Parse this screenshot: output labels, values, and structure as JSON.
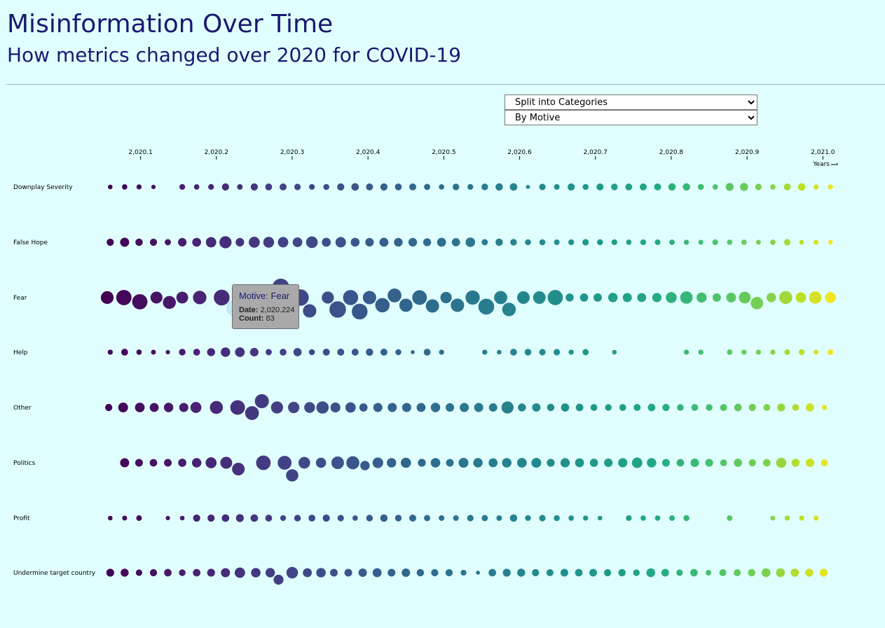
{
  "header": {
    "title": "Misinformation Over Time",
    "subtitle": "How metrics changed over 2020 for COVID-19"
  },
  "controls": {
    "split": {
      "selected": "Split into Categories"
    },
    "group": {
      "selected": "By Motive"
    }
  },
  "tooltip": {
    "heading": "Motive: Fear",
    "date_label": "Date:",
    "date_value": "2,020.224",
    "count_label": "Count:",
    "count_value": "83"
  },
  "chart_data": {
    "type": "scatter",
    "xlabel": "Years",
    "xlim": [
      2020.056,
      2021.02
    ],
    "x_ticks": [
      "2,020.1",
      "2,020.2",
      "2,020.3",
      "2,020.4",
      "2,020.5",
      "2,020.6",
      "2,020.7",
      "2,020.8",
      "2,020.9",
      "2,021.0"
    ],
    "x_tick_values": [
      2020.1,
      2020.2,
      2020.3,
      2020.4,
      2020.5,
      2020.6,
      2020.7,
      2020.8,
      2020.9,
      2021.0
    ],
    "series_colors": {
      "start": "#440154",
      "end": "#fde725"
    },
    "series": [
      {
        "name": "Downplay Severity",
        "x": [
          2020.06,
          2020.079,
          2020.098,
          2020.117,
          2020.155,
          2020.174,
          2020.193,
          2020.212,
          2020.231,
          2020.25,
          2020.269,
          2020.288,
          2020.307,
          2020.326,
          2020.345,
          2020.364,
          2020.383,
          2020.402,
          2020.421,
          2020.44,
          2020.459,
          2020.478,
          2020.497,
          2020.516,
          2020.535,
          2020.554,
          2020.573,
          2020.592,
          2020.611,
          2020.63,
          2020.649,
          2020.668,
          2020.687,
          2020.706,
          2020.725,
          2020.744,
          2020.763,
          2020.782,
          2020.801,
          2020.82,
          2020.839,
          2020.858,
          2020.877,
          2020.896,
          2020.915,
          2020.934,
          2020.953,
          2020.972,
          2020.991,
          2021.01
        ],
        "count": [
          10,
          13,
          12,
          9,
          15,
          13,
          15,
          22,
          14,
          22,
          20,
          21,
          18,
          15,
          16,
          22,
          24,
          21,
          22,
          20,
          21,
          17,
          13,
          19,
          15,
          19,
          23,
          24,
          8,
          18,
          14,
          22,
          16,
          21,
          19,
          20,
          21,
          21,
          23,
          23,
          16,
          13,
          26,
          27,
          18,
          13,
          21,
          24,
          12,
          12
        ]
      },
      {
        "name": "False Hope",
        "x": [
          2020.06,
          2020.079,
          2020.098,
          2020.117,
          2020.136,
          2020.155,
          2020.174,
          2020.193,
          2020.212,
          2020.231,
          2020.25,
          2020.269,
          2020.288,
          2020.307,
          2020.326,
          2020.345,
          2020.364,
          2020.383,
          2020.402,
          2020.421,
          2020.44,
          2020.459,
          2020.478,
          2020.497,
          2020.516,
          2020.535,
          2020.554,
          2020.573,
          2020.592,
          2020.611,
          2020.63,
          2020.649,
          2020.668,
          2020.687,
          2020.706,
          2020.725,
          2020.744,
          2020.763,
          2020.782,
          2020.801,
          2020.82,
          2020.839,
          2020.858,
          2020.877,
          2020.896,
          2020.915,
          2020.934,
          2020.953,
          2020.972,
          2020.991,
          2021.01
        ],
        "count": [
          22,
          34,
          23,
          22,
          17,
          30,
          32,
          43,
          58,
          30,
          48,
          47,
          44,
          38,
          54,
          33,
          44,
          32,
          30,
          33,
          31,
          31,
          26,
          33,
          28,
          37,
          17,
          23,
          19,
          16,
          16,
          14,
          15,
          18,
          16,
          15,
          13,
          15,
          14,
          13,
          12,
          11,
          15,
          13,
          13,
          11,
          13,
          18,
          10,
          12,
          10
        ]
      },
      {
        "name": "Fear",
        "x": [
          2020.056,
          2020.078,
          2020.099,
          2020.121,
          2020.138,
          2020.155,
          2020.178,
          2020.207,
          2020.224,
          2020.25,
          2020.271,
          2020.285,
          2020.311,
          2020.323,
          2020.347,
          2020.36,
          2020.377,
          2020.389,
          2020.402,
          2020.419,
          2020.435,
          2020.45,
          2020.468,
          2020.485,
          2020.503,
          2020.518,
          2020.538,
          2020.556,
          2020.575,
          2020.586,
          2020.605,
          2020.626,
          2020.647,
          2020.666,
          2020.685,
          2020.703,
          2020.723,
          2020.742,
          2020.761,
          2020.781,
          2020.8,
          2020.82,
          2020.84,
          2020.86,
          2020.879,
          2020.897,
          2020.913,
          2020.932,
          2020.951,
          2020.971,
          2020.99,
          2021.01
        ],
        "count": [
          64,
          90,
          90,
          57,
          66,
          55,
          71,
          96,
          83,
          88,
          88,
          108,
          104,
          70,
          58,
          105,
          88,
          96,
          70,
          80,
          74,
          68,
          84,
          69,
          52,
          70,
          79,
          97,
          68,
          72,
          62,
          62,
          89,
          27,
          28,
          29,
          36,
          34,
          33,
          35,
          47,
          61,
          41,
          29,
          39,
          55,
          61,
          37,
          66,
          44,
          61,
          48
        ]
      },
      {
        "name": "Help",
        "x": [
          2020.06,
          2020.079,
          2020.098,
          2020.117,
          2020.136,
          2020.155,
          2020.174,
          2020.193,
          2020.212,
          2020.231,
          2020.25,
          2020.269,
          2020.288,
          2020.307,
          2020.326,
          2020.345,
          2020.364,
          2020.383,
          2020.402,
          2020.421,
          2020.44,
          2020.459,
          2020.478,
          2020.497,
          2020.554,
          2020.573,
          2020.592,
          2020.611,
          2020.63,
          2020.649,
          2020.668,
          2020.687,
          2020.725,
          2020.82,
          2020.839,
          2020.877,
          2020.896,
          2020.915,
          2020.934,
          2020.953,
          2020.972,
          2020.991,
          2021.01
        ],
        "count": [
          12,
          20,
          13,
          11,
          9,
          19,
          20,
          27,
          36,
          38,
          30,
          17,
          20,
          28,
          16,
          21,
          21,
          21,
          23,
          21,
          16,
          8,
          20,
          12,
          12,
          10,
          20,
          19,
          18,
          18,
          12,
          17,
          10,
          12,
          12,
          13,
          12,
          12,
          12,
          14,
          16,
          11,
          14
        ]
      },
      {
        "name": "Other",
        "x": [
          2020.058,
          2020.077,
          2020.099,
          2020.118,
          2020.137,
          2020.157,
          2020.173,
          2020.2,
          2020.228,
          2020.247,
          2020.26,
          2020.28,
          2020.302,
          2020.323,
          2020.34,
          2020.357,
          2020.377,
          2020.394,
          2020.413,
          2020.432,
          2020.451,
          2020.47,
          2020.489,
          2020.508,
          2020.527,
          2020.546,
          2020.565,
          2020.584,
          2020.603,
          2020.622,
          2020.641,
          2020.66,
          2020.679,
          2020.698,
          2020.717,
          2020.736,
          2020.755,
          2020.774,
          2020.793,
          2020.812,
          2020.831,
          2020.85,
          2020.869,
          2020.888,
          2020.907,
          2020.926,
          2020.945,
          2020.964,
          2020.983,
          2021.002
        ],
        "count": [
          22,
          39,
          38,
          33,
          36,
          34,
          48,
          66,
          83,
          74,
          77,
          58,
          51,
          47,
          60,
          40,
          43,
          28,
          34,
          34,
          34,
          33,
          36,
          30,
          34,
          34,
          29,
          58,
          27,
          29,
          23,
          28,
          24,
          20,
          19,
          20,
          21,
          24,
          22,
          19,
          20,
          19,
          21,
          24,
          22,
          20,
          26,
          20,
          28,
          12
        ]
      },
      {
        "name": "Politics",
        "x": [
          2020.079,
          2020.098,
          2020.117,
          2020.136,
          2020.155,
          2020.174,
          2020.193,
          2020.213,
          2020.229,
          2020.262,
          2020.29,
          2020.3,
          2020.316,
          2020.338,
          2020.36,
          2020.38,
          2020.396,
          2020.413,
          2020.431,
          2020.45,
          2020.471,
          2020.489,
          2020.508,
          2020.526,
          2020.545,
          2020.565,
          2020.583,
          2020.603,
          2020.622,
          2020.641,
          2020.66,
          2020.679,
          2020.698,
          2020.717,
          2020.736,
          2020.755,
          2020.774,
          2020.793,
          2020.812,
          2020.831,
          2020.85,
          2020.869,
          2020.888,
          2020.907,
          2020.926,
          2020.945,
          2020.964,
          2020.983,
          2021.002
        ],
        "count": [
          34,
          25,
          24,
          25,
          28,
          36,
          48,
          56,
          63,
          82,
          75,
          60,
          54,
          42,
          62,
          67,
          36,
          45,
          36,
          42,
          26,
          37,
          25,
          39,
          36,
          33,
          37,
          38,
          39,
          26,
          35,
          33,
          28,
          30,
          35,
          44,
          36,
          25,
          24,
          30,
          26,
          20,
          28,
          22,
          24,
          42,
          27,
          30,
          20
        ]
      },
      {
        "name": "Profit",
        "x": [
          2020.06,
          2020.079,
          2020.098,
          2020.136,
          2020.155,
          2020.174,
          2020.193,
          2020.212,
          2020.231,
          2020.25,
          2020.269,
          2020.288,
          2020.307,
          2020.326,
          2020.345,
          2020.364,
          2020.383,
          2020.402,
          2020.421,
          2020.44,
          2020.459,
          2020.478,
          2020.497,
          2020.516,
          2020.535,
          2020.554,
          2020.573,
          2020.592,
          2020.611,
          2020.63,
          2020.649,
          2020.668,
          2020.687,
          2020.706,
          2020.744,
          2020.763,
          2020.782,
          2020.801,
          2020.82,
          2020.877,
          2020.934,
          2020.953,
          2020.972,
          2020.991
        ],
        "count": [
          10,
          11,
          14,
          9,
          10,
          22,
          22,
          24,
          26,
          24,
          20,
          15,
          19,
          20,
          22,
          18,
          13,
          19,
          23,
          19,
          21,
          17,
          14,
          14,
          18,
          17,
          14,
          23,
          15,
          18,
          16,
          13,
          12,
          10,
          15,
          13,
          13,
          14,
          16,
          14,
          11,
          12,
          12,
          12
        ]
      },
      {
        "name": "Undermine target country",
        "x": [
          2020.06,
          2020.079,
          2020.098,
          2020.117,
          2020.136,
          2020.155,
          2020.174,
          2020.193,
          2020.212,
          2020.231,
          2020.252,
          2020.271,
          2020.282,
          2020.3,
          2020.32,
          2020.338,
          2020.355,
          2020.374,
          2020.393,
          2020.412,
          2020.431,
          2020.45,
          2020.469,
          2020.488,
          2020.507,
          2020.526,
          2020.545,
          2020.564,
          2020.583,
          2020.602,
          2020.621,
          2020.64,
          2020.659,
          2020.678,
          2020.697,
          2020.716,
          2020.735,
          2020.754,
          2020.773,
          2020.792,
          2020.811,
          2020.83,
          2020.849,
          2020.868,
          2020.887,
          2020.906,
          2020.925,
          2020.944,
          2020.963,
          2020.982,
          2021.001
        ],
        "count": [
          26,
          27,
          18,
          22,
          24,
          19,
          24,
          26,
          34,
          43,
          37,
          36,
          40,
          53,
          33,
          37,
          25,
          25,
          29,
          33,
          25,
          29,
          23,
          22,
          22,
          15,
          8,
          24,
          26,
          27,
          22,
          21,
          25,
          24,
          25,
          22,
          23,
          19,
          32,
          25,
          18,
          24,
          14,
          21,
          21,
          23,
          32,
          32,
          28,
          27,
          27
        ]
      }
    ]
  }
}
